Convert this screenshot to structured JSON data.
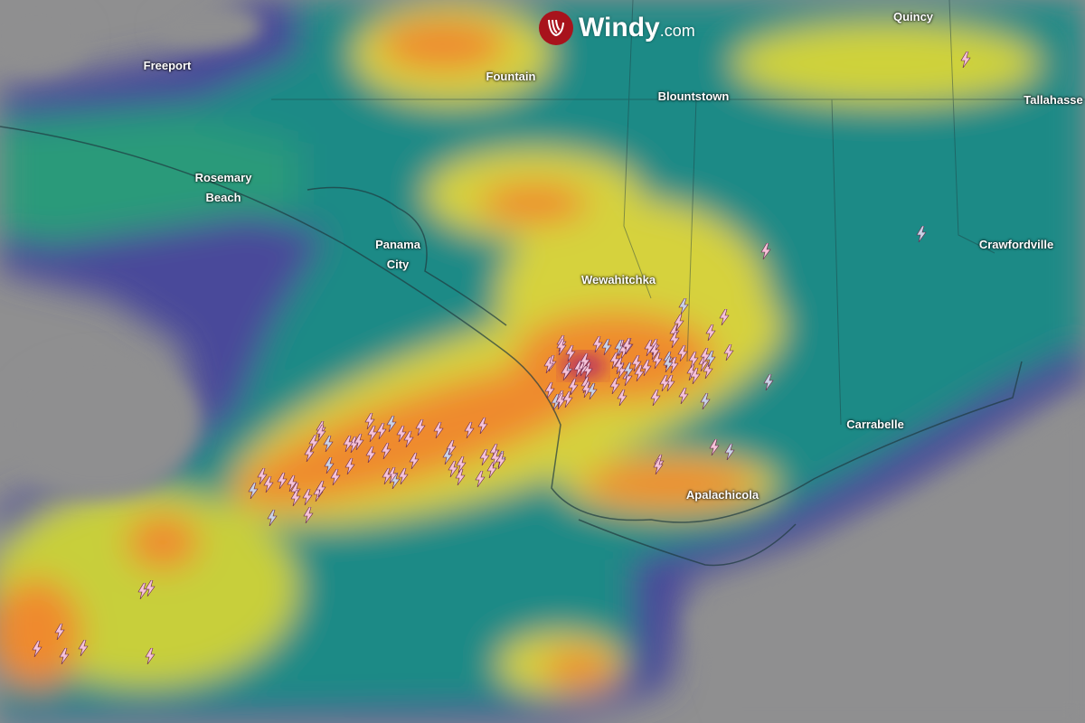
{
  "logo": {
    "brand": "Windy",
    "suffix": ".com",
    "icon": "windy-logo-icon",
    "accent": "#a8131c"
  },
  "map": {
    "layer": "radar-and-lightning",
    "places": [
      {
        "name": "Freeport"
      },
      {
        "name": "Fountain"
      },
      {
        "name": "Blountstown"
      },
      {
        "name": "Quincy"
      },
      {
        "name": "Tallahasse"
      },
      {
        "name": "Rosemary\nBeach"
      },
      {
        "name": "Panama\nCity"
      },
      {
        "name": "Wewahitchka"
      },
      {
        "name": "Crawfordville"
      },
      {
        "name": "Carrabelle"
      },
      {
        "name": "Apalachicola"
      }
    ],
    "colors": {
      "no_data": "#8f8f90",
      "light": "#3b4fa0",
      "moderate": "#1fa07a",
      "heavy": "#e8d43a",
      "intense": "#ef8a2f",
      "extreme": "#b0246a",
      "lightning": "#f6c3d8"
    }
  }
}
